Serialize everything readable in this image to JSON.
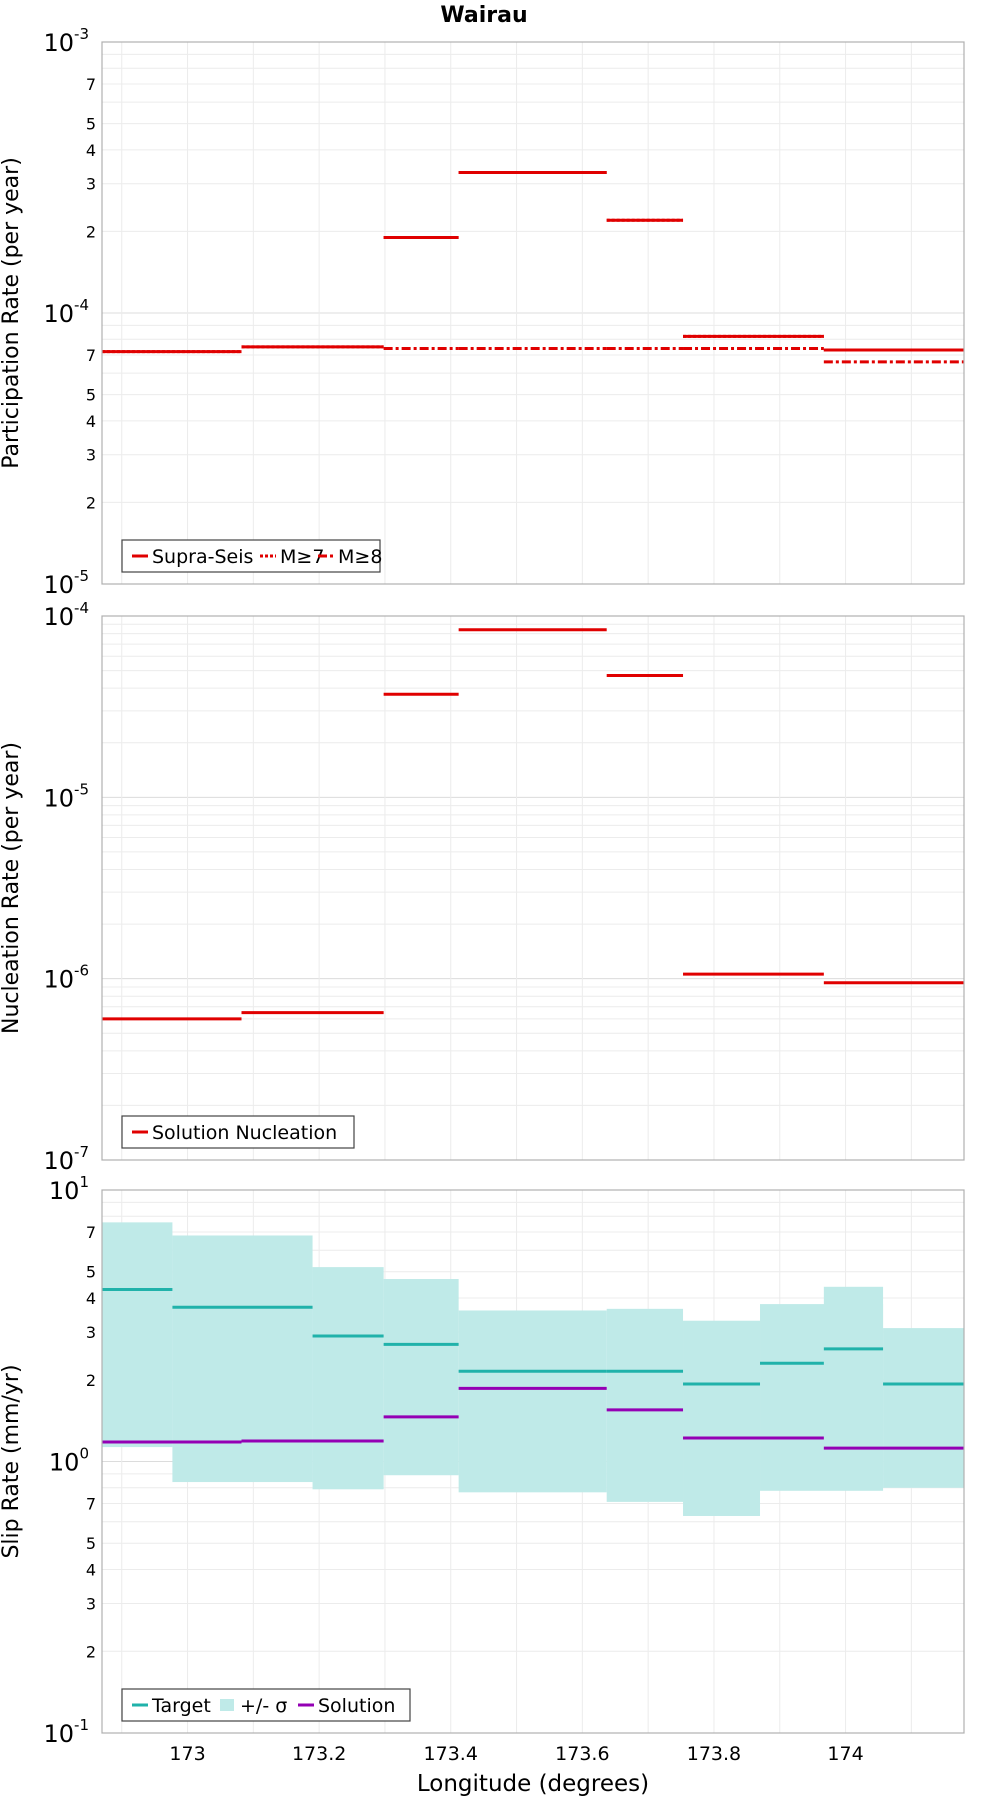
{
  "figure": {
    "title": "Wairau",
    "xlabel": "Longitude (degrees)",
    "xticks": [
      "173",
      "173.2",
      "173.4",
      "173.6",
      "173.8",
      "174"
    ]
  },
  "chart_data": [
    {
      "type": "line",
      "ylabel": "Participation Rate (per year)",
      "yscale": "log",
      "ylim": [
        1e-05,
        0.001
      ],
      "xlim": [
        172.87,
        174.18
      ],
      "grid": true,
      "legend_position": "bottom-left",
      "legend": [
        {
          "label": "Supra-Seis",
          "style": "solid",
          "color": "#e00000"
        },
        {
          "label": "M≥7",
          "style": "dotted",
          "color": "#e00000"
        },
        {
          "label": "M≥8",
          "style": "dashdot",
          "color": "#e00000"
        }
      ],
      "series": [
        {
          "name": "Supra-Seis",
          "color": "#e00000",
          "style": "solid",
          "segments": [
            {
              "x": [
                172.87,
                173.082
              ],
              "y": 7.2e-05
            },
            {
              "x": [
                173.082,
                173.298
              ],
              "y": 7.5e-05
            },
            {
              "x": [
                173.298,
                173.412
              ],
              "y": 0.00019
            },
            {
              "x": [
                173.412,
                173.637
              ],
              "y": 0.00033
            },
            {
              "x": [
                173.637,
                173.753
              ],
              "y": 0.00022
            },
            {
              "x": [
                173.753,
                173.967
              ],
              "y": 8.2e-05
            },
            {
              "x": [
                173.967,
                174.18
              ],
              "y": 7.3e-05
            }
          ]
        },
        {
          "name": "M≥7",
          "color": "#e00000",
          "style": "dotted",
          "segments": [
            {
              "x": [
                172.87,
                173.082
              ],
              "y": 7.2e-05
            },
            {
              "x": [
                173.082,
                173.298
              ],
              "y": 7.5e-05
            },
            {
              "x": [
                173.298,
                173.412
              ],
              "y": 0.00019
            },
            {
              "x": [
                173.412,
                173.637
              ],
              "y": 0.00033
            },
            {
              "x": [
                173.637,
                173.753
              ],
              "y": 0.00022
            },
            {
              "x": [
                173.753,
                173.967
              ],
              "y": 8.2e-05
            },
            {
              "x": [
                173.967,
                174.18
              ],
              "y": 7.3e-05
            }
          ]
        },
        {
          "name": "M≥8",
          "color": "#e00000",
          "style": "dashdot",
          "segments": [
            {
              "x": [
                173.298,
                173.412
              ],
              "y": 7.4e-05
            },
            {
              "x": [
                173.412,
                173.637
              ],
              "y": 7.4e-05
            },
            {
              "x": [
                173.637,
                173.753
              ],
              "y": 7.4e-05
            },
            {
              "x": [
                173.753,
                173.967
              ],
              "y": 7.4e-05
            },
            {
              "x": [
                173.967,
                174.18
              ],
              "y": 6.6e-05
            }
          ]
        }
      ]
    },
    {
      "type": "line",
      "ylabel": "Nucleation Rate (per year)",
      "yscale": "log",
      "ylim": [
        1e-07,
        0.0001
      ],
      "xlim": [
        172.87,
        174.18
      ],
      "grid": true,
      "legend_position": "bottom-left",
      "legend": [
        {
          "label": "Solution Nucleation",
          "style": "solid",
          "color": "#e00000"
        }
      ],
      "series": [
        {
          "name": "Solution Nucleation",
          "color": "#e00000",
          "style": "solid",
          "segments": [
            {
              "x": [
                172.87,
                173.082
              ],
              "y": 6e-07
            },
            {
              "x": [
                173.082,
                173.298
              ],
              "y": 6.5e-07
            },
            {
              "x": [
                173.298,
                173.412
              ],
              "y": 3.7e-05
            },
            {
              "x": [
                173.412,
                173.637
              ],
              "y": 8.4e-05
            },
            {
              "x": [
                173.637,
                173.753
              ],
              "y": 4.7e-05
            },
            {
              "x": [
                173.753,
                173.967
              ],
              "y": 1.06e-06
            },
            {
              "x": [
                173.967,
                174.18
              ],
              "y": 9.5e-07
            }
          ]
        }
      ]
    },
    {
      "type": "line",
      "ylabel": "Slip Rate (mm/yr)",
      "yscale": "log",
      "ylim": [
        0.1,
        10
      ],
      "xlim": [
        172.87,
        174.18
      ],
      "grid": true,
      "legend_position": "bottom-left",
      "legend": [
        {
          "label": "Target",
          "style": "solid",
          "color": "#20b2aa"
        },
        {
          "label": "+/- σ",
          "style": "band",
          "color": "#bfeae8"
        },
        {
          "label": "Solution",
          "style": "solid",
          "color": "#9400b4"
        }
      ],
      "band": {
        "name": "+/- σ",
        "color": "#bfeae8",
        "segments": [
          {
            "x": [
              172.87,
              172.977
            ],
            "lo": 1.13,
            "hi": 7.6
          },
          {
            "x": [
              172.977,
              173.19
            ],
            "lo": 0.84,
            "hi": 6.8
          },
          {
            "x": [
              173.19,
              173.298
            ],
            "lo": 0.79,
            "hi": 5.2
          },
          {
            "x": [
              173.298,
              173.412
            ],
            "lo": 0.89,
            "hi": 4.7
          },
          {
            "x": [
              173.412,
              173.637
            ],
            "lo": 0.77,
            "hi": 3.6
          },
          {
            "x": [
              173.637,
              173.753
            ],
            "lo": 0.71,
            "hi": 3.65
          },
          {
            "x": [
              173.753,
              173.87
            ],
            "lo": 0.63,
            "hi": 3.3
          },
          {
            "x": [
              173.87,
              174.057
            ],
            "lo": 0.78,
            "hi": 3.8
          },
          {
            "x": [
              174.057,
              174.18
            ],
            "lo": 0.8,
            "hi": 3.1
          }
        ]
      },
      "band_extra": [
        {
          "x": [
            173.967,
            174.057
          ],
          "lo": 0.93,
          "hi": 4.4
        }
      ],
      "series": [
        {
          "name": "Target",
          "color": "#20b2aa",
          "style": "solid",
          "segments": [
            {
              "x": [
                172.87,
                172.977
              ],
              "y": 4.3
            },
            {
              "x": [
                172.977,
                173.19
              ],
              "y": 3.7
            },
            {
              "x": [
                173.19,
                173.298
              ],
              "y": 2.9
            },
            {
              "x": [
                173.298,
                173.412
              ],
              "y": 2.7
            },
            {
              "x": [
                173.412,
                173.637
              ],
              "y": 2.15
            },
            {
              "x": [
                173.637,
                173.753
              ],
              "y": 2.15
            },
            {
              "x": [
                173.753,
                173.87
              ],
              "y": 1.93
            },
            {
              "x": [
                173.87,
                173.967
              ],
              "y": 2.3
            },
            {
              "x": [
                173.967,
                174.057
              ],
              "y": 2.6
            },
            {
              "x": [
                174.057,
                174.18
              ],
              "y": 1.93
            }
          ]
        },
        {
          "name": "Solution",
          "color": "#9400b4",
          "style": "solid",
          "segments": [
            {
              "x": [
                172.87,
                173.082
              ],
              "y": 1.18
            },
            {
              "x": [
                173.082,
                173.298
              ],
              "y": 1.19
            },
            {
              "x": [
                173.298,
                173.412
              ],
              "y": 1.46
            },
            {
              "x": [
                173.412,
                173.637
              ],
              "y": 1.86
            },
            {
              "x": [
                173.637,
                173.753
              ],
              "y": 1.55
            },
            {
              "x": [
                173.753,
                173.967
              ],
              "y": 1.22
            },
            {
              "x": [
                173.967,
                174.18
              ],
              "y": 1.12
            }
          ]
        }
      ]
    }
  ]
}
